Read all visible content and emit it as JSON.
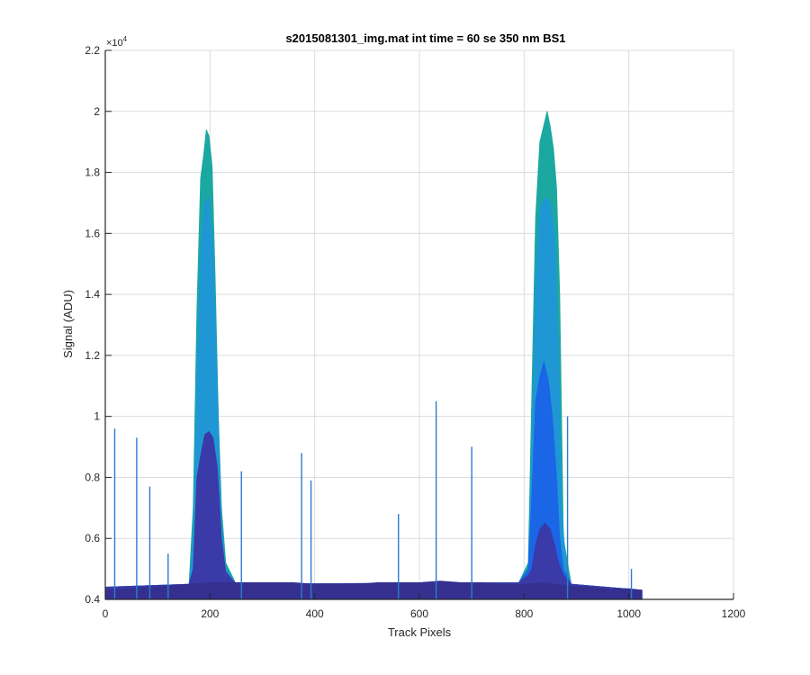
{
  "chart_data": {
    "type": "area",
    "title": "s2015081301_img.mat int time = 60 se  350 nm BS1",
    "xlabel": "Track Pixels",
    "ylabel": "Signal (ADU)",
    "xlim": [
      0,
      1200
    ],
    "ylim": [
      4000,
      22000
    ],
    "y_exponent_label": "×10",
    "y_exponent_power": "4",
    "grid": true,
    "legend": "none",
    "x_ticks": [
      {
        "value": 0,
        "label": "0"
      },
      {
        "value": 200,
        "label": "200"
      },
      {
        "value": 400,
        "label": "400"
      },
      {
        "value": 600,
        "label": "600"
      },
      {
        "value": 800,
        "label": "800"
      },
      {
        "value": 1000,
        "label": "1000"
      },
      {
        "value": 1200,
        "label": "1200"
      }
    ],
    "y_ticks": [
      {
        "value": 4000,
        "label": "0.4"
      },
      {
        "value": 6000,
        "label": "0.6"
      },
      {
        "value": 8000,
        "label": "0.8"
      },
      {
        "value": 10000,
        "label": "1"
      },
      {
        "value": 12000,
        "label": "1.2"
      },
      {
        "value": 14000,
        "label": "1.4"
      },
      {
        "value": 16000,
        "label": "1.6"
      },
      {
        "value": 18000,
        "label": "1.8"
      },
      {
        "value": 20000,
        "label": "2"
      },
      {
        "value": 22000,
        "label": "2.2"
      }
    ],
    "series": [
      {
        "color": "#1ba8a0",
        "x": [
          0,
          160,
          168,
          175,
          182,
          188,
          193,
          198,
          204,
          210,
          216,
          222,
          230,
          250,
          790,
          808,
          815,
          822,
          830,
          837,
          844,
          850,
          856,
          862,
          868,
          875,
          890,
          1025
        ],
        "y": [
          4400,
          4500,
          7000,
          13500,
          17800,
          18600,
          19400,
          19200,
          18200,
          14500,
          10000,
          7000,
          5200,
          4500,
          4550,
          5200,
          11000,
          16500,
          19000,
          19500,
          20000,
          19500,
          18800,
          17500,
          14000,
          6000,
          4500,
          4300
        ]
      },
      {
        "color": "#1f97d4",
        "x": [
          0,
          160,
          168,
          175,
          182,
          190,
          198,
          206,
          214,
          222,
          230,
          250,
          790,
          808,
          815,
          822,
          830,
          840,
          850,
          858,
          866,
          872,
          880,
          890,
          1025
        ],
        "y": [
          4400,
          4500,
          6000,
          11500,
          15500,
          17000,
          17200,
          15500,
          11000,
          6500,
          5000,
          4500,
          4550,
          5000,
          9000,
          14500,
          16800,
          17200,
          17000,
          16000,
          12000,
          7000,
          5000,
          4500,
          4300
        ]
      },
      {
        "color": "#1a66e6",
        "x": [
          0,
          790,
          808,
          815,
          822,
          830,
          838,
          846,
          854,
          862,
          868,
          875,
          890,
          1025
        ],
        "y": [
          4400,
          4550,
          5000,
          7500,
          10500,
          11300,
          11800,
          11200,
          10000,
          8000,
          6000,
          5000,
          4500,
          4300
        ]
      },
      {
        "color": "#3a3aa8",
        "x": [
          0,
          160,
          168,
          175,
          182,
          190,
          198,
          206,
          214,
          222,
          230,
          250,
          790,
          808,
          815,
          822,
          830,
          840,
          850,
          858,
          866,
          875,
          890,
          1025
        ],
        "y": [
          4400,
          4500,
          5000,
          8000,
          8700,
          9400,
          9500,
          9300,
          8300,
          6000,
          4900,
          4500,
          4550,
          4800,
          5000,
          5800,
          6300,
          6500,
          6300,
          5800,
          5200,
          4800,
          4500,
          4300
        ]
      },
      {
        "color": "#35308f",
        "x": [
          0,
          40,
          80,
          120,
          160,
          200,
          240,
          280,
          320,
          360,
          400,
          440,
          480,
          520,
          560,
          600,
          640,
          680,
          720,
          760,
          800,
          840,
          880,
          920,
          960,
          1000,
          1025
        ],
        "y": [
          4300,
          4350,
          4400,
          4450,
          4500,
          4550,
          4550,
          4550,
          4550,
          4550,
          4500,
          4500,
          4500,
          4550,
          4550,
          4550,
          4600,
          4550,
          4550,
          4500,
          4500,
          4550,
          4450,
          4400,
          4350,
          4350,
          4300
        ]
      }
    ],
    "spikes": [
      {
        "x": 18,
        "y": 9600
      },
      {
        "x": 60,
        "y": 9300
      },
      {
        "x": 85,
        "y": 7700
      },
      {
        "x": 120,
        "y": 5500
      },
      {
        "x": 260,
        "y": 8200
      },
      {
        "x": 375,
        "y": 8800
      },
      {
        "x": 393,
        "y": 7900
      },
      {
        "x": 560,
        "y": 6800
      },
      {
        "x": 632,
        "y": 10500
      },
      {
        "x": 700,
        "y": 9000
      },
      {
        "x": 883,
        "y": 10000
      },
      {
        "x": 1005,
        "y": 5000
      }
    ]
  }
}
